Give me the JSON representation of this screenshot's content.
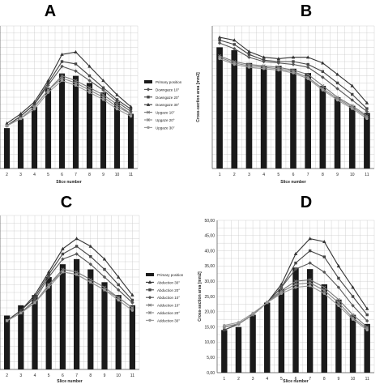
{
  "chart_data": [
    {
      "panel": "A",
      "type": "bar",
      "categories": [
        "2",
        "3",
        "4",
        "5",
        "6",
        "7",
        "8",
        "9",
        "10",
        "11"
      ],
      "xlabel": "Slice number",
      "ylabel": "",
      "ylim": [
        0,
        60
      ],
      "show_y_ticks": false,
      "grid": true,
      "legend": "right",
      "bar": {
        "name": "Primary position",
        "values": [
          17,
          21,
          26,
          34,
          40,
          39,
          36,
          32,
          28,
          23
        ]
      },
      "series": [
        {
          "name": "Downgaze 10°",
          "color": "#555555",
          "marker": "diamond",
          "values": [
            18,
            22,
            27,
            35,
            43,
            41,
            37,
            33,
            28,
            24
          ]
        },
        {
          "name": "Downgaze 20°",
          "color": "#444444",
          "marker": "square",
          "values": [
            18,
            22,
            27,
            36,
            45,
            44,
            39,
            34,
            29,
            25
          ]
        },
        {
          "name": "Downgaze 30°",
          "color": "#333333",
          "marker": "triangle",
          "values": [
            19,
            23,
            28,
            37,
            48,
            49,
            43,
            37,
            31,
            26
          ]
        },
        {
          "name": "Upgaze 10°",
          "color": "#777777",
          "marker": "x",
          "values": [
            18,
            21,
            26,
            33,
            39,
            37,
            34,
            31,
            27,
            23
          ]
        },
        {
          "name": "Upgaze 20°",
          "color": "#888888",
          "marker": "star",
          "values": [
            18,
            21,
            26,
            33,
            38,
            36,
            33,
            30,
            26,
            23
          ]
        },
        {
          "name": "Upgaze 30°",
          "color": "#999999",
          "marker": "circle",
          "values": [
            18,
            21,
            25,
            32,
            37,
            35,
            32,
            29,
            25,
            22
          ]
        }
      ]
    },
    {
      "panel": "B",
      "type": "bar",
      "categories": [
        "1",
        "2",
        "3",
        "4",
        "5",
        "6",
        "7",
        "8",
        "9",
        "10",
        "11"
      ],
      "xlabel": "Slice number",
      "ylabel": "Cross-section area [mm2]",
      "ylim": [
        0,
        50
      ],
      "show_y_ticks": false,
      "grid": true,
      "legend": "none",
      "bar": {
        "name": "",
        "values": [
          42.5,
          41.5,
          37,
          36,
          36,
          35,
          33.5,
          29,
          25,
          22,
          19.5
        ]
      },
      "series": [
        {
          "name": "",
          "color": "#333333",
          "marker": "triangle",
          "values": [
            46,
            45,
            41,
            39,
            38.5,
            39,
            39,
            37,
            33,
            29,
            23
          ]
        },
        {
          "name": "",
          "color": "#444444",
          "marker": "square",
          "values": [
            45,
            43.5,
            40,
            38,
            37.5,
            37.5,
            36.5,
            34,
            30,
            26,
            21
          ]
        },
        {
          "name": "",
          "color": "#555555",
          "marker": "diamond",
          "values": [
            44,
            42,
            39,
            37.5,
            37,
            36.5,
            35.5,
            32,
            28,
            24,
            20
          ]
        },
        {
          "name": "",
          "color": "#777777",
          "marker": "x",
          "values": [
            39.5,
            37.5,
            36.5,
            36,
            35.5,
            34.5,
            33,
            29,
            25,
            22,
            18.5
          ]
        },
        {
          "name": "",
          "color": "#888888",
          "marker": "star",
          "values": [
            39,
            37,
            36,
            35.5,
            35,
            34,
            32,
            28,
            24.5,
            21.5,
            18
          ]
        },
        {
          "name": "",
          "color": "#999999",
          "marker": "circle",
          "values": [
            38.5,
            36.5,
            35.5,
            35,
            34.5,
            33.5,
            31.5,
            27.5,
            24,
            21,
            17.5
          ]
        }
      ]
    },
    {
      "panel": "C",
      "type": "bar",
      "categories": [
        "2",
        "3",
        "4",
        "5",
        "6",
        "7",
        "8",
        "9",
        "10",
        "11"
      ],
      "xlabel": "Slice number",
      "ylabel": "",
      "ylim": [
        0,
        60
      ],
      "show_y_ticks": false,
      "grid": true,
      "legend": "right",
      "bar": {
        "name": "Primary position",
        "values": [
          21,
          25,
          29,
          36,
          41,
          43,
          39,
          34,
          29,
          25
        ]
      },
      "series": [
        {
          "name": "Abduction 30°",
          "color": "#333333",
          "marker": "triangle",
          "values": [
            19,
            23,
            29,
            38,
            47,
            51,
            48,
            43,
            36,
            29
          ]
        },
        {
          "name": "Abduction 20°",
          "color": "#444444",
          "marker": "square",
          "values": [
            19,
            23,
            28,
            37,
            45,
            48,
            44,
            39,
            33,
            27
          ]
        },
        {
          "name": "Abduction 10°",
          "color": "#555555",
          "marker": "diamond",
          "values": [
            19,
            22,
            27,
            36,
            43,
            45,
            41,
            36,
            31,
            26
          ]
        },
        {
          "name": "Adduction 10°",
          "color": "#777777",
          "marker": "x",
          "values": [
            19,
            22,
            26,
            33,
            39,
            38,
            35,
            32,
            28,
            24
          ]
        },
        {
          "name": "Adduction 20°",
          "color": "#888888",
          "marker": "star",
          "values": [
            19,
            22,
            26,
            33,
            38,
            37,
            34,
            31,
            28,
            24
          ]
        },
        {
          "name": "Adduction 30°",
          "color": "#999999",
          "marker": "circle",
          "values": [
            19,
            22,
            26,
            32,
            38,
            37,
            34,
            31,
            27,
            23
          ]
        }
      ]
    },
    {
      "panel": "D",
      "type": "bar",
      "categories": [
        "1",
        "2",
        "3",
        "4",
        "5",
        "6",
        "7",
        "8",
        "9",
        "10",
        "11"
      ],
      "xlabel": "Slice number",
      "ylabel": "Cross-section area [mm2]",
      "ylim": [
        0,
        50
      ],
      "yticks": [
        "0,00",
        "5,00",
        "10,00",
        "15,00",
        "20,00",
        "25,00",
        "30,00",
        "35,00",
        "40,00",
        "45,00",
        "50,00"
      ],
      "show_y_ticks": true,
      "grid": true,
      "legend": "none",
      "bar": {
        "name": "",
        "values": [
          14,
          15,
          19,
          23,
          27.5,
          34.5,
          34,
          29,
          24,
          19,
          16
        ]
      },
      "series": [
        {
          "name": "",
          "color": "#333333",
          "marker": "triangle",
          "values": [
            14,
            16,
            19,
            23,
            29,
            39,
            44,
            43,
            35,
            28,
            21
          ]
        },
        {
          "name": "",
          "color": "#444444",
          "marker": "square",
          "values": [
            14,
            16,
            19,
            23,
            28,
            36,
            40,
            38,
            31,
            25,
            19
          ]
        },
        {
          "name": "",
          "color": "#555555",
          "marker": "diamond",
          "values": [
            15,
            16,
            19,
            23,
            28,
            34,
            36,
            33,
            28,
            22,
            17
          ]
        },
        {
          "name": "",
          "color": "#777777",
          "marker": "x",
          "values": [
            15,
            16,
            19,
            23,
            27,
            30,
            30.5,
            28,
            24,
            19,
            15
          ]
        },
        {
          "name": "",
          "color": "#888888",
          "marker": "star",
          "values": [
            15,
            16,
            19,
            23,
            26.5,
            29,
            29.5,
            27,
            23,
            18,
            14.5
          ]
        },
        {
          "name": "",
          "color": "#999999",
          "marker": "circle",
          "values": [
            15.5,
            16.5,
            19.5,
            23,
            26,
            28,
            28.5,
            26,
            22,
            17.5,
            14
          ]
        }
      ]
    }
  ]
}
